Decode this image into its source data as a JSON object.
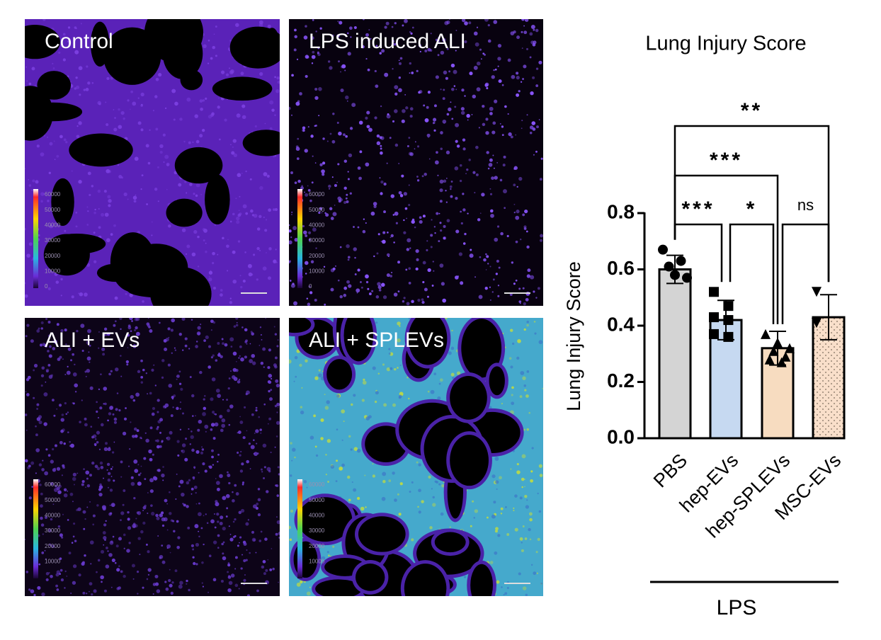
{
  "panels": [
    {
      "label": "Control",
      "colorbar_ticks": [
        60000,
        50000,
        40000,
        30000,
        20000,
        10000,
        0
      ]
    },
    {
      "label": "LPS induced ALI",
      "colorbar_ticks": [
        60000,
        50000,
        40000,
        30000,
        20000,
        10000,
        0
      ]
    },
    {
      "label": "ALI + EVs",
      "colorbar_ticks": [
        60000,
        50000,
        40000,
        30000,
        20000,
        10000
      ]
    },
    {
      "label": "ALI + SPLEVs",
      "colorbar_ticks": [
        60000,
        50000,
        40000,
        30000,
        20000,
        10000
      ]
    }
  ],
  "chart_data": {
    "type": "bar",
    "title": "Lung Injury Score",
    "y_label": "Lung Injury  Score",
    "categories": [
      "PBS",
      "hep-EVs",
      "hep-SPLEVs",
      "MSC-EVs"
    ],
    "values": [
      0.6,
      0.42,
      0.32,
      0.43
    ],
    "errors": [
      0.05,
      0.07,
      0.06,
      0.08
    ],
    "colors": [
      "#d4d4d4",
      "#c6d9f1",
      "#f7dcc0",
      "#f9dfca"
    ],
    "markers": [
      "circle",
      "square",
      "triangle",
      "triangle-down"
    ],
    "points": [
      [
        0.67,
        0.63,
        0.61,
        0.57,
        0.58
      ],
      [
        0.52,
        0.47,
        0.43,
        0.42,
        0.37,
        0.36
      ],
      [
        0.37,
        0.34,
        0.32,
        0.31,
        0.29,
        0.28,
        0.27
      ],
      [
        0.52,
        0.41,
        0.41
      ]
    ],
    "ylim": [
      0,
      0.8
    ],
    "yticks": [
      {
        "value": 0,
        "label": "0.0"
      },
      0.2,
      0.4,
      0.6,
      0.8
    ],
    "comparisons": [
      {
        "from": "PBS",
        "to": "MSC-EVs",
        "label": "**"
      },
      {
        "from": "PBS",
        "to": "hep-SPLEVs",
        "label": "***"
      },
      {
        "from": "PBS",
        "to": "hep-EVs",
        "label": "***"
      },
      {
        "from": "hep-EVs",
        "to": "hep-SPLEVs",
        "label": "*"
      },
      {
        "from": "hep-SPLEVs",
        "to": "MSC-EVs",
        "label": "ns"
      }
    ],
    "group_label": "LPS"
  }
}
